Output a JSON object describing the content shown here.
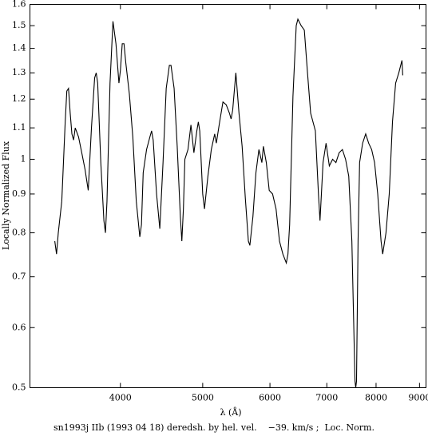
{
  "chart_data": {
    "type": "line",
    "xlabel": "λ (Å)",
    "ylabel": "Locally Normalized Flux",
    "caption": "sn1993j IIb (1993 04 18) deredsh. by hel. vel.    −39. km/s ;  Loc. Norm.",
    "xscale": "log",
    "yscale": "log",
    "xlim": [
      3130,
      9160
    ],
    "ylim": [
      0.5,
      1.6
    ],
    "xticks": [
      4000,
      5000,
      6000,
      7000,
      8000,
      9000
    ],
    "yticks": [
      0.5,
      0.6,
      0.7,
      0.8,
      0.9,
      1,
      1.1,
      1.2,
      1.3,
      1.4,
      1.5,
      1.6
    ],
    "grid": false,
    "color": "#000000",
    "x": [
      3348,
      3364,
      3380,
      3412,
      3444,
      3459,
      3475,
      3491,
      3507,
      3523,
      3539,
      3571,
      3602,
      3634,
      3666,
      3698,
      3730,
      3746,
      3761,
      3793,
      3825,
      3841,
      3857,
      3889,
      3920,
      3952,
      3984,
      4000,
      4020,
      4039,
      4059,
      4098,
      4137,
      4176,
      4216,
      4235,
      4255,
      4294,
      4333,
      4353,
      4372,
      4412,
      4451,
      4490,
      4529,
      4568,
      4588,
      4627,
      4666,
      4706,
      4725,
      4745,
      4764,
      4804,
      4843,
      4882,
      4921,
      4941,
      4960,
      5000,
      5024,
      5071,
      5118,
      5165,
      5188,
      5235,
      5282,
      5329,
      5376,
      5400,
      5423,
      5470,
      5517,
      5564,
      5612,
      5659,
      5682,
      5729,
      5776,
      5823,
      5870,
      5894,
      5941,
      5988,
      6043,
      6100,
      6157,
      6214,
      6272,
      6300,
      6329,
      6386,
      6443,
      6472,
      6529,
      6586,
      6643,
      6700,
      6757,
      6786,
      6843,
      6872,
      6929,
      6986,
      7048,
      7111,
      7175,
      7238,
      7302,
      7365,
      7429,
      7492,
      7524,
      7556,
      7571,
      7587,
      7619,
      7651,
      7714,
      7778,
      7841,
      7905,
      7968,
      8036,
      8109,
      8145,
      8218,
      8291,
      8364,
      8436,
      8509,
      8582,
      8600
    ],
    "values": [
      0.78,
      0.75,
      0.8,
      0.88,
      1.12,
      1.23,
      1.24,
      1.15,
      1.08,
      1.06,
      1.1,
      1.07,
      1.02,
      0.97,
      0.91,
      1.1,
      1.28,
      1.3,
      1.26,
      0.99,
      0.83,
      0.8,
      0.88,
      1.26,
      1.52,
      1.42,
      1.26,
      1.31,
      1.42,
      1.42,
      1.34,
      1.22,
      1.07,
      0.88,
      0.79,
      0.82,
      0.96,
      1.03,
      1.07,
      1.09,
      1.06,
      0.9,
      0.81,
      0.99,
      1.24,
      1.33,
      1.33,
      1.24,
      1.04,
      0.84,
      0.78,
      0.86,
      1.0,
      1.03,
      1.11,
      1.02,
      1.09,
      1.12,
      1.09,
      0.9,
      0.86,
      0.95,
      1.03,
      1.08,
      1.05,
      1.12,
      1.19,
      1.18,
      1.15,
      1.13,
      1.16,
      1.3,
      1.15,
      1.04,
      0.89,
      0.78,
      0.77,
      0.84,
      0.96,
      1.03,
      0.99,
      1.04,
      0.99,
      0.91,
      0.9,
      0.86,
      0.78,
      0.75,
      0.73,
      0.75,
      0.82,
      1.21,
      1.5,
      1.53,
      1.5,
      1.48,
      1.3,
      1.15,
      1.11,
      1.09,
      0.9,
      0.83,
      0.99,
      1.05,
      0.98,
      1.0,
      0.99,
      1.02,
      1.03,
      1.0,
      0.95,
      0.78,
      0.63,
      0.51,
      0.5,
      0.51,
      0.78,
      0.99,
      1.05,
      1.08,
      1.05,
      1.03,
      0.99,
      0.9,
      0.78,
      0.75,
      0.8,
      0.9,
      1.12,
      1.26,
      1.3,
      1.35,
      1.29
    ]
  }
}
